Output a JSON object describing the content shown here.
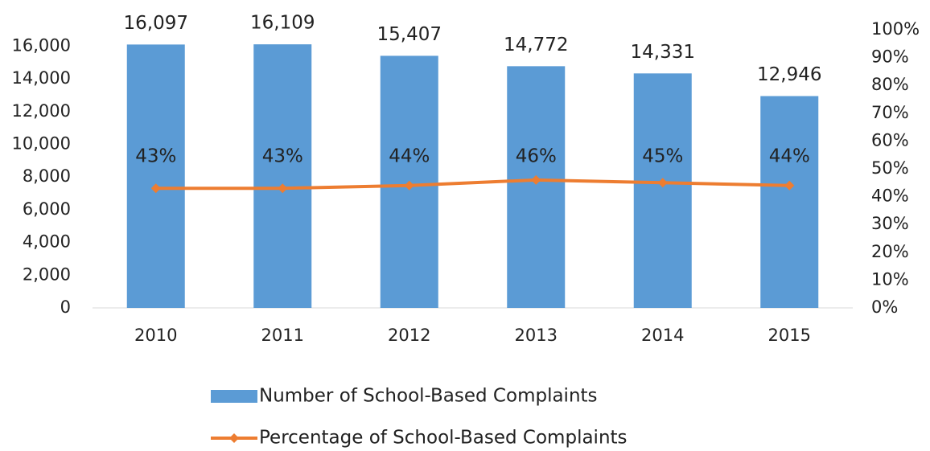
{
  "chart_data": {
    "type": "bar_line",
    "categories": [
      "2010",
      "2011",
      "2012",
      "2013",
      "2014",
      "2015"
    ],
    "series": [
      {
        "name": "Number of School-Based Complaints",
        "type": "bar",
        "color": "#5b9bd5",
        "values": [
          16097,
          16109,
          15407,
          14772,
          14331,
          12946
        ],
        "value_labels": [
          "16,097",
          "16,109",
          "15,407",
          "14,772",
          "14,331",
          "12,946"
        ]
      },
      {
        "name": "Percentage of School-Based Complaints",
        "type": "line",
        "axis": "y2",
        "color": "#ed7d31",
        "values": [
          43,
          43,
          44,
          46,
          45,
          44
        ],
        "value_labels": [
          "43%",
          "43%",
          "44%",
          "46%",
          "45%",
          "44%"
        ]
      }
    ],
    "ylim": [
      0,
      17000
    ],
    "yticks": [
      0,
      {
        "value": 2000,
        "label": "2,000"
      },
      {
        "value": 4000,
        "label": "4,000"
      },
      {
        "value": 6000,
        "label": "6,000"
      },
      {
        "value": 8000,
        "label": "8,000"
      },
      {
        "value": 10000,
        "label": "10,000"
      },
      {
        "value": 12000,
        "label": "12,000"
      },
      {
        "value": 14000,
        "label": "14,000"
      },
      {
        "value": 16000,
        "label": "16,000"
      }
    ],
    "y2lim": [
      0,
      100
    ],
    "y2ticks": [
      {
        "value": 0,
        "label": "0%"
      },
      {
        "value": 10,
        "label": "10%"
      },
      {
        "value": 20,
        "label": "20%"
      },
      {
        "value": 30,
        "label": "30%"
      },
      {
        "value": 40,
        "label": "40%"
      },
      {
        "value": 50,
        "label": "50%"
      },
      {
        "value": 60,
        "label": "60%"
      },
      {
        "value": 70,
        "label": "70%"
      },
      {
        "value": 80,
        "label": "80%"
      },
      {
        "value": 90,
        "label": "90%"
      },
      {
        "value": 100,
        "label": "100%"
      }
    ],
    "legend": "bottom"
  }
}
